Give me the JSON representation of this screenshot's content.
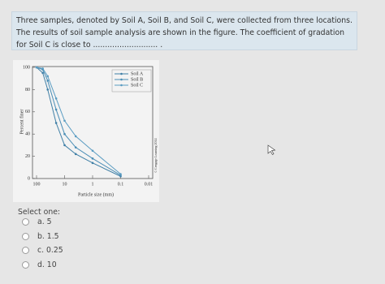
{
  "question": {
    "text": "Three samples, denoted by Soil A, Soil B, and Soil C, were collected from three locations. The results of soil sample analysis are shown in the figure. The coefficient of gradation for Soil C is close to ........................... ."
  },
  "chart_data": {
    "type": "line",
    "xlabel": "Particle size (mm)",
    "ylabel": "Percent finer",
    "credit": "© Cengage Learning 2014",
    "xscale": "log",
    "xlim": [
      100,
      0.01
    ],
    "xticks": [
      100,
      10,
      1,
      0.1,
      0.01
    ],
    "ylim": [
      0,
      100
    ],
    "yticks": [
      0,
      20,
      40,
      60,
      80,
      100
    ],
    "legend": "upper right",
    "series": [
      {
        "name": "Soil A",
        "color": "#3f7fa6",
        "x": [
          100,
          60,
          40,
          20,
          10,
          4,
          1,
          0.1
        ],
        "values": [
          100,
          95,
          80,
          50,
          30,
          22,
          14,
          2
        ]
      },
      {
        "name": "Soil B",
        "color": "#4a8db5",
        "x": [
          100,
          60,
          40,
          20,
          10,
          4,
          1,
          0.1
        ],
        "values": [
          100,
          98,
          88,
          62,
          40,
          28,
          18,
          3
        ]
      },
      {
        "name": "Soil C",
        "color": "#5a9cc2",
        "x": [
          100,
          60,
          40,
          20,
          10,
          4,
          1,
          0.1
        ],
        "values": [
          100,
          99,
          92,
          72,
          52,
          38,
          25,
          4
        ]
      }
    ]
  },
  "prompt": "Select one:",
  "options": [
    "a. 5",
    "b. 1.5",
    "c. 0.25",
    "d. 10"
  ]
}
